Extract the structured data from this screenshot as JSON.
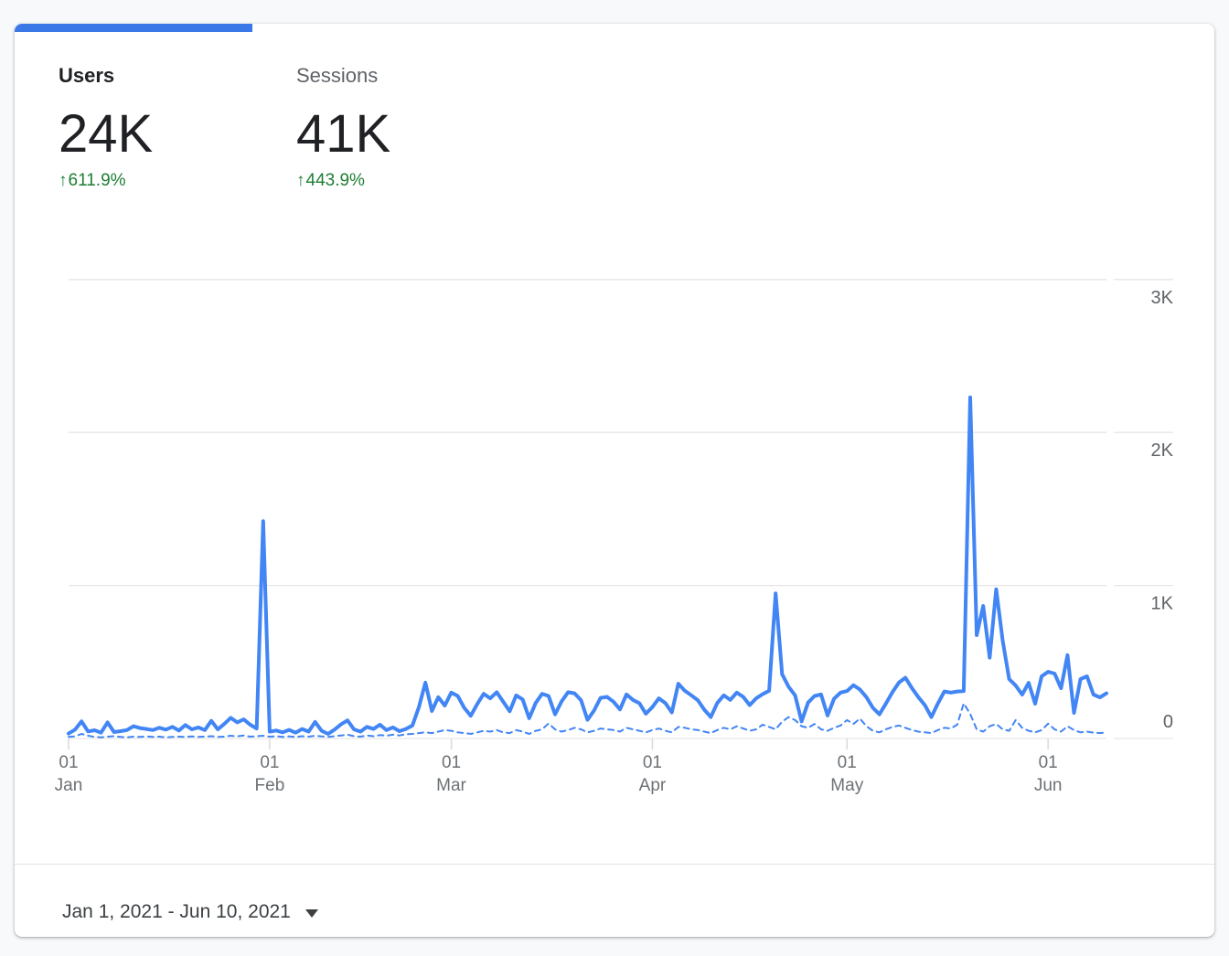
{
  "metrics": {
    "users": {
      "label": "Users",
      "value": "24K",
      "arrow": "↑",
      "delta": "611.9%",
      "delta_color": "#1e7e34",
      "active": true
    },
    "sessions": {
      "label": "Sessions",
      "value": "41K",
      "arrow": "↑",
      "delta": "443.9%",
      "delta_color": "#1e7e34",
      "active": false
    }
  },
  "colors": {
    "tab_indicator": "#3b78e7",
    "line_blue": "#4285f4",
    "gridline": "#e6e6e6",
    "tick": "#d7dadd",
    "axis_text": "#6d7175",
    "y_axis_text": "#5f6368"
  },
  "footer": {
    "date_range": "Jan 1, 2021 - Jun 10, 2021"
  },
  "chart_data": {
    "type": "line",
    "title": "Users per day, Jan 1 2021 - Jun 10 2021, current vs previous period",
    "x_start_date": "Jan 1, 2021",
    "x_end_date": "Jun 10, 2021",
    "x_total_days": 161,
    "grid": true,
    "y_axis": {
      "ticks": [
        {
          "value": 0,
          "label": "0"
        },
        {
          "value": 1000,
          "label": "1K"
        },
        {
          "value": 2000,
          "label": "2K"
        },
        {
          "value": 3000,
          "label": "3K"
        }
      ],
      "max": 3000,
      "position": "right"
    },
    "x_axis": {
      "ticks": [
        {
          "day": 0,
          "line1": "01",
          "line2": "Jan"
        },
        {
          "day": 31,
          "line1": "01",
          "line2": "Feb"
        },
        {
          "day": 59,
          "line1": "01",
          "line2": "Mar"
        },
        {
          "day": 90,
          "line1": "01",
          "line2": "Apr"
        },
        {
          "day": 120,
          "line1": "01",
          "line2": "May"
        },
        {
          "day": 151,
          "line1": "01",
          "line2": "Jun"
        }
      ]
    },
    "series": [
      {
        "name": "users-current",
        "style": "solid",
        "color": "#4285f4",
        "values": [
          32,
          58,
          112,
          46,
          54,
          38,
          105,
          42,
          48,
          55,
          80,
          68,
          62,
          55,
          70,
          58,
          76,
          52,
          88,
          60,
          72,
          55,
          115,
          60,
          95,
          135,
          105,
          125,
          90,
          65,
          1420,
          45,
          52,
          40,
          56,
          38,
          62,
          45,
          108,
          50,
          30,
          58,
          92,
          118,
          60,
          45,
          76,
          62,
          90,
          55,
          72,
          48,
          62,
          85,
          205,
          365,
          180,
          270,
          215,
          300,
          278,
          200,
          148,
          225,
          292,
          262,
          302,
          240,
          178,
          282,
          255,
          132,
          232,
          292,
          278,
          158,
          242,
          302,
          295,
          250,
          122,
          182,
          265,
          272,
          240,
          190,
          288,
          252,
          230,
          162,
          205,
          262,
          232,
          170,
          358,
          312,
          282,
          250,
          188,
          140,
          232,
          282,
          252,
          300,
          272,
          218,
          262,
          290,
          312,
          948,
          420,
          338,
          282,
          112,
          235,
          278,
          288,
          150,
          260,
          300,
          310,
          348,
          320,
          270,
          200,
          158,
          228,
          302,
          365,
          397,
          330,
          270,
          218,
          140,
          228,
          307,
          300,
          307,
          310,
          2230,
          675,
          866,
          528,
          975,
          640,
          388,
          346,
          287,
          364,
          227,
          406,
          436,
          424,
          328,
          545,
          167,
          388,
          406,
          287,
          269,
          295
        ]
      },
      {
        "name": "users-previous",
        "style": "dashed",
        "color": "#4285f4",
        "values": [
          10,
          14,
          30,
          18,
          10,
          8,
          12,
          15,
          10,
          8,
          12,
          10,
          14,
          10,
          12,
          8,
          10,
          12,
          10,
          14,
          10,
          12,
          15,
          10,
          12,
          18,
          14,
          20,
          12,
          15,
          18,
          12,
          15,
          10,
          14,
          10,
          15,
          12,
          18,
          14,
          10,
          15,
          20,
          25,
          15,
          12,
          20,
          15,
          22,
          18,
          25,
          20,
          28,
          30,
          35,
          40,
          35,
          45,
          55,
          50,
          40,
          35,
          30,
          40,
          50,
          45,
          55,
          40,
          35,
          55,
          45,
          30,
          50,
          60,
          98,
          60,
          45,
          55,
          70,
          60,
          40,
          50,
          65,
          60,
          55,
          45,
          70,
          60,
          50,
          40,
          55,
          65,
          50,
          40,
          75,
          70,
          60,
          55,
          45,
          35,
          55,
          70,
          60,
          80,
          65,
          50,
          60,
          90,
          75,
          60,
          110,
          140,
          120,
          80,
          70,
          95,
          60,
          50,
          70,
          85,
          120,
          95,
          130,
          80,
          50,
          40,
          60,
          75,
          85,
          70,
          55,
          45,
          40,
          35,
          55,
          70,
          65,
          90,
          230,
          160,
          60,
          45,
          80,
          95,
          60,
          50,
          120,
          70,
          50,
          40,
          55,
          97,
          60,
          45,
          80,
          55,
          40,
          45,
          38,
          35,
          40
        ]
      }
    ]
  }
}
